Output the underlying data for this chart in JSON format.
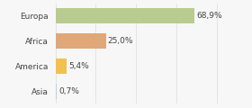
{
  "categories": [
    "Asia",
    "America",
    "Africa",
    "Europa"
  ],
  "values": [
    0.7,
    5.4,
    25.0,
    68.9
  ],
  "labels": [
    "0,7%",
    "5,4%",
    "25,0%",
    "68,9%"
  ],
  "bar_colors": [
    "#b8d0e8",
    "#f0c050",
    "#dfa878",
    "#b8cc90"
  ],
  "background_color": "#f7f7f7",
  "xlim": [
    0,
    95
  ],
  "bar_height": 0.6,
  "label_fontsize": 6.5,
  "tick_fontsize": 6.5,
  "grid_color": "#e0e0e0",
  "text_color": "#444444"
}
